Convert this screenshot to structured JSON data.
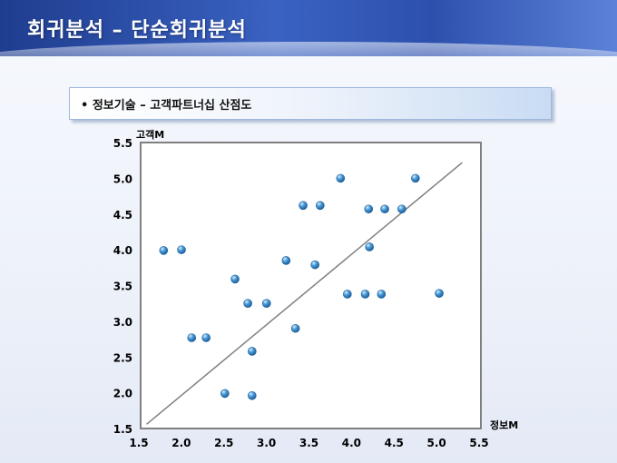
{
  "page": {
    "title": "회귀분석 – 단순회귀분석",
    "subtitle": "• 정보기술 – 고객파트너십 산점도"
  },
  "chart_data": {
    "type": "scatter",
    "xlabel": "정보M",
    "ylabel": "고객M",
    "xlim": [
      1.5,
      5.5
    ],
    "ylim": [
      1.5,
      5.5
    ],
    "xticks": [
      "1.5",
      "2.0",
      "2.5",
      "3.0",
      "3.5",
      "4.0",
      "4.5",
      "5.0",
      "5.5"
    ],
    "yticks": [
      "1.5",
      "2.0",
      "2.5",
      "3.0",
      "3.5",
      "4.0",
      "4.5",
      "5.0",
      "5.5"
    ],
    "grid": false,
    "points": [
      {
        "x": 1.77,
        "y": 3.99
      },
      {
        "x": 1.98,
        "y": 4.0
      },
      {
        "x": 2.1,
        "y": 2.77
      },
      {
        "x": 2.27,
        "y": 2.77
      },
      {
        "x": 2.49,
        "y": 1.99
      },
      {
        "x": 2.61,
        "y": 3.59
      },
      {
        "x": 2.76,
        "y": 3.25
      },
      {
        "x": 2.81,
        "y": 2.58
      },
      {
        "x": 2.81,
        "y": 1.96
      },
      {
        "x": 2.98,
        "y": 3.25
      },
      {
        "x": 3.21,
        "y": 3.85
      },
      {
        "x": 3.32,
        "y": 2.9
      },
      {
        "x": 3.41,
        "y": 4.62
      },
      {
        "x": 3.55,
        "y": 3.79
      },
      {
        "x": 3.61,
        "y": 4.62
      },
      {
        "x": 3.85,
        "y": 5.0
      },
      {
        "x": 3.93,
        "y": 3.38
      },
      {
        "x": 4.14,
        "y": 3.38
      },
      {
        "x": 4.18,
        "y": 4.57
      },
      {
        "x": 4.19,
        "y": 4.04
      },
      {
        "x": 4.33,
        "y": 3.38
      },
      {
        "x": 4.37,
        "y": 4.57
      },
      {
        "x": 4.57,
        "y": 4.57
      },
      {
        "x": 4.73,
        "y": 5.0
      },
      {
        "x": 5.01,
        "y": 3.39
      }
    ],
    "trendline": {
      "x1": 1.57,
      "y1": 1.56,
      "x2": 5.28,
      "y2": 5.22
    },
    "colors": {
      "point": "#3d8fd0",
      "point_highlight": "#bfe3ff",
      "line": "#808080",
      "frame": "#808080"
    }
  }
}
